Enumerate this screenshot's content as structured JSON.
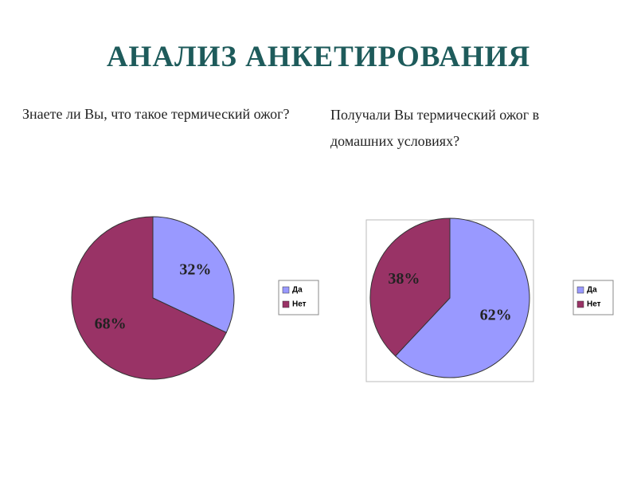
{
  "title": "АНАЛИЗ АНКЕТИРОВАНИЯ",
  "chart_data": [
    {
      "type": "pie",
      "title": "Знаете ли Вы, что такое термический ожог?",
      "categories": [
        "Да",
        "Нет"
      ],
      "values": [
        32,
        68
      ],
      "value_labels": [
        "32%",
        "68%"
      ],
      "colors": [
        "#9999ff",
        "#993366"
      ],
      "frame": false
    },
    {
      "type": "pie",
      "title": "Получали Вы термический ожог в домашних условиях?",
      "categories": [
        "Да",
        "Нет"
      ],
      "values": [
        62,
        38
      ],
      "value_labels": [
        "62%",
        "38%"
      ],
      "colors": [
        "#9999ff",
        "#993366"
      ],
      "frame": true
    }
  ]
}
